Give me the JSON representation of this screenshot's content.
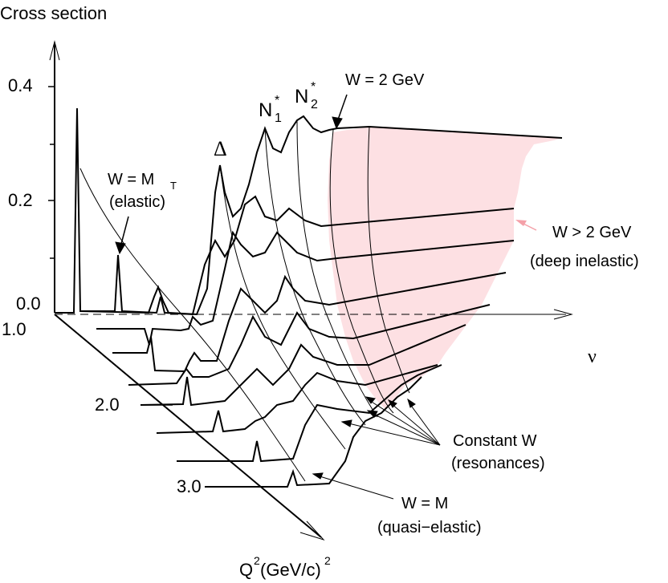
{
  "labels": {
    "y_axis": "Cross section",
    "x_axis": "ν",
    "q2_axis_main": "Q",
    "q2_axis_sup": "2",
    "q2_axis_units": " (GeV/c)",
    "q2_axis_units_sup": "2",
    "delta": "Δ",
    "n1": "N",
    "n1_sup": "*",
    "n1_sub": "1",
    "n2": "N",
    "n2_sup": "*",
    "n2_sub": "2",
    "w2gev": "W = 2 GeV",
    "wmt_line1": "W = M",
    "wmt_sub": "T",
    "wmt_line2": "(elastic)",
    "wgt2_line1": "W > 2 GeV",
    "wgt2_line2": "(deep inelastic)",
    "constw_line1": "Constant W",
    "constw_line2": "(resonances)",
    "wm_line1": "W = M",
    "wm_line2": "(quasi−elastic)"
  },
  "y_ticks": [
    "0.4",
    "0.2",
    "0.0"
  ],
  "q2_ticks": [
    "1.0",
    "2.0",
    "3.0"
  ],
  "colors": {
    "deep_inelastic_fill": "#fde0e3",
    "arrow_pink": "#f4a0a8",
    "ink": "#000000"
  }
}
